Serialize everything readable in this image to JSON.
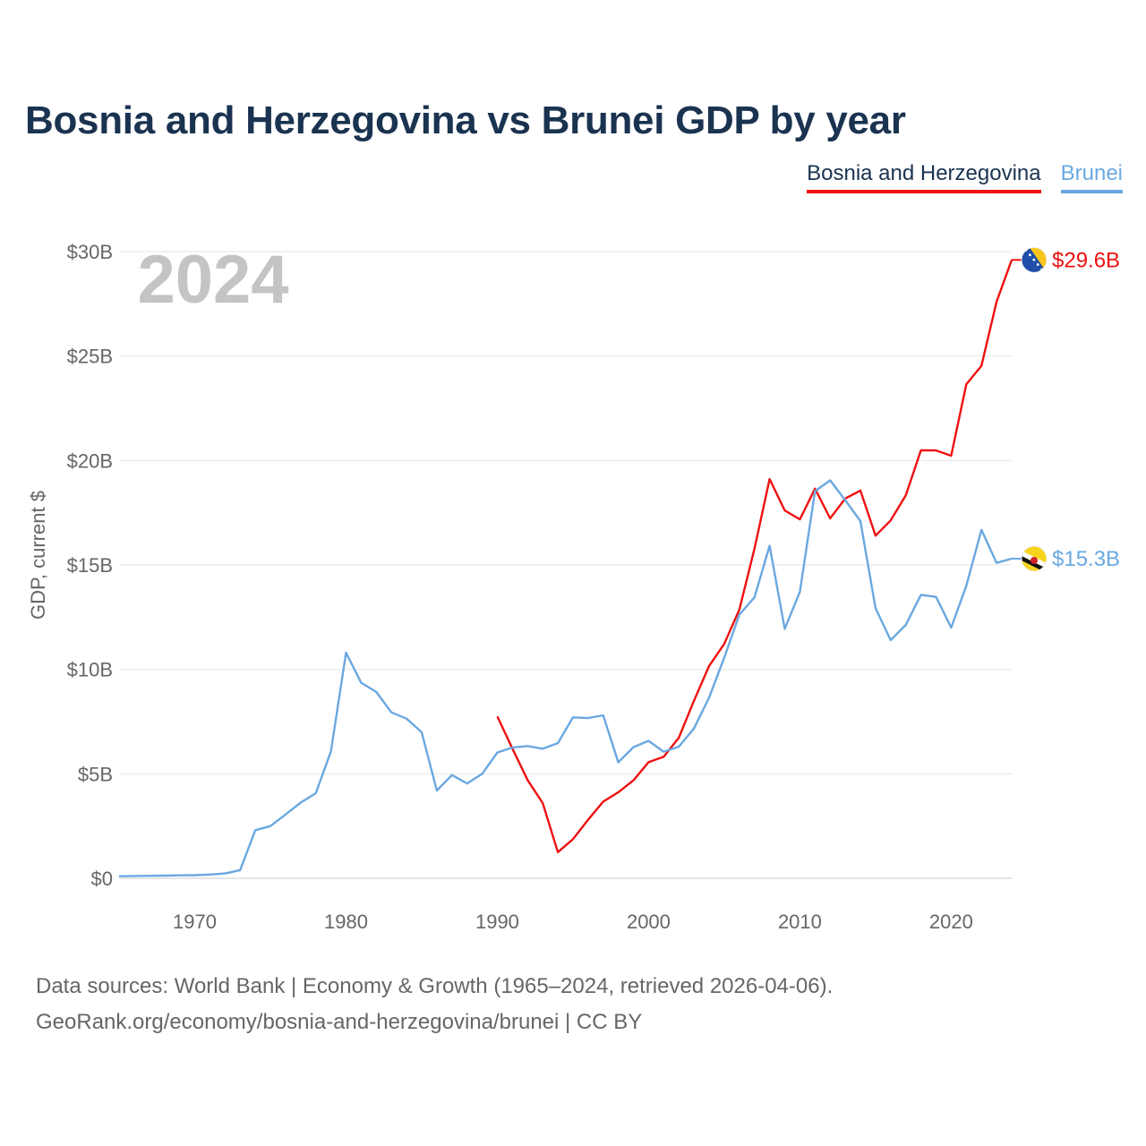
{
  "title": "Bosnia and Herzegovina vs Brunei GDP by year",
  "year_watermark": "2024",
  "legend": [
    {
      "label": "Bosnia and Herzegovina",
      "color": "#ee1111"
    },
    {
      "label": "Brunei",
      "color": "#6aa8e0"
    }
  ],
  "source": {
    "line1": "Data sources: World Bank | Economy & Growth (1965–2024, retrieved 2026-04-06).",
    "line2": "GeoRank.org/economy/bosnia-and-herzegovina/brunei | CC BY"
  },
  "chart_data": {
    "type": "line",
    "title": "Bosnia and Herzegovina vs Brunei GDP by year",
    "xlabel": "",
    "ylabel": "GDP, current $",
    "xlim": [
      1965,
      2024
    ],
    "ylim": [
      0,
      30
    ],
    "y_ticks": [
      0,
      5,
      10,
      15,
      20,
      25,
      30
    ],
    "y_tick_labels": [
      "$0",
      "$5B",
      "$10B",
      "$15B",
      "$20B",
      "$25B",
      "$30B"
    ],
    "x_ticks": [
      1970,
      1980,
      1990,
      2000,
      2010,
      2020
    ],
    "x_tick_labels": [
      "1970",
      "1980",
      "1990",
      "2000",
      "2010",
      "2020"
    ],
    "grid": true,
    "units": "billions of current US$",
    "series": [
      {
        "name": "Bosnia and Herzegovina",
        "color": "#ee1111",
        "end_label": "$29.6B",
        "x": [
          1990,
          1991,
          1992,
          1993,
          1994,
          1995,
          1996,
          1997,
          1998,
          1999,
          2000,
          2001,
          2002,
          2003,
          2004,
          2005,
          2006,
          2007,
          2008,
          2009,
          2010,
          2011,
          2012,
          2013,
          2014,
          2015,
          2016,
          2017,
          2018,
          2019,
          2020,
          2021,
          2022,
          2023,
          2024
        ],
        "values": [
          7.75,
          6.2,
          4.7,
          3.6,
          1.25,
          1.87,
          2.8,
          3.67,
          4.12,
          4.69,
          5.56,
          5.82,
          6.73,
          8.5,
          10.16,
          11.22,
          12.86,
          15.78,
          19.11,
          17.61,
          17.18,
          18.65,
          17.23,
          18.18,
          18.56,
          16.4,
          17.13,
          18.33,
          20.49,
          20.48,
          20.23,
          23.65,
          24.53,
          27.6,
          29.6
        ]
      },
      {
        "name": "Brunei",
        "color": "#6aa8e0",
        "end_label": "$15.3B",
        "x": [
          1965,
          1966,
          1967,
          1968,
          1969,
          1970,
          1971,
          1972,
          1973,
          1974,
          1975,
          1976,
          1977,
          1978,
          1979,
          1980,
          1981,
          1982,
          1983,
          1984,
          1985,
          1986,
          1987,
          1988,
          1989,
          1990,
          1991,
          1992,
          1993,
          1994,
          1995,
          1996,
          1997,
          1998,
          1999,
          2000,
          2001,
          2002,
          2003,
          2004,
          2005,
          2006,
          2007,
          2008,
          2009,
          2010,
          2011,
          2012,
          2013,
          2014,
          2015,
          2016,
          2017,
          2018,
          2019,
          2020,
          2021,
          2022,
          2023,
          2024
        ],
        "values": [
          0.1,
          0.11,
          0.12,
          0.13,
          0.14,
          0.15,
          0.18,
          0.23,
          0.39,
          2.3,
          2.5,
          3.05,
          3.62,
          4.07,
          6.07,
          10.8,
          9.36,
          8.92,
          7.94,
          7.64,
          6.99,
          4.2,
          4.94,
          4.54,
          5.0,
          6.02,
          6.26,
          6.33,
          6.2,
          6.47,
          7.7,
          7.67,
          7.8,
          5.55,
          6.28,
          6.58,
          6.06,
          6.3,
          7.17,
          8.65,
          10.56,
          12.62,
          13.45,
          15.92,
          11.94,
          13.71,
          18.53,
          19.05,
          18.1,
          17.1,
          12.93,
          11.4,
          12.13,
          13.57,
          13.47,
          12.0,
          14.0,
          16.68,
          15.1,
          15.3
        ]
      }
    ]
  }
}
